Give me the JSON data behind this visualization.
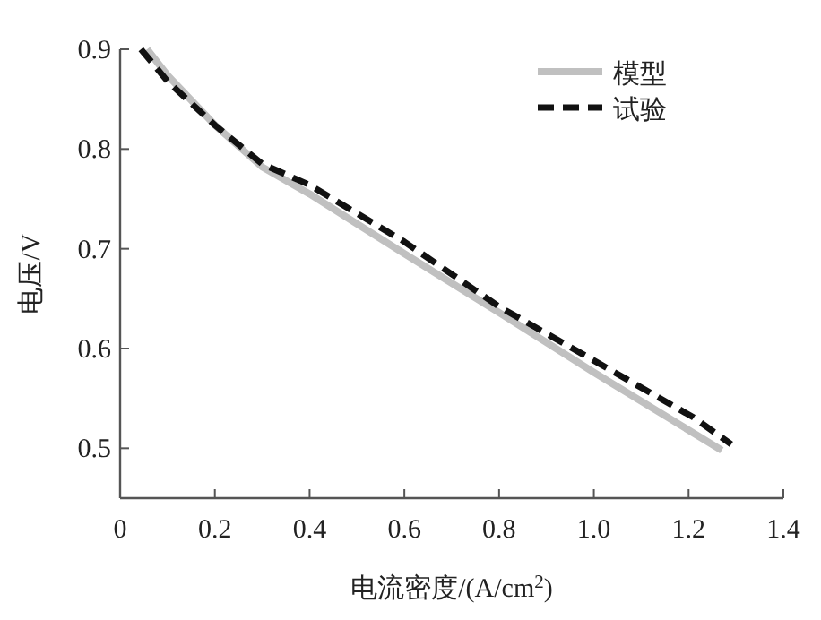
{
  "chart_data": {
    "type": "line",
    "xlabel": "电流密度/(A/cm$^{2}$)",
    "ylabel": "电压/V",
    "xlim": [
      0,
      1.4
    ],
    "ylim": [
      0.45,
      0.9
    ],
    "xticks": [
      0,
      0.2,
      0.4,
      0.6,
      0.8,
      {
        "value": 1.0,
        "label": "1.0"
      },
      1.2,
      1.4
    ],
    "yticks": [
      0.5,
      0.6,
      0.7,
      0.8,
      0.9
    ],
    "legend": "top right",
    "series": [
      {
        "name": "模型",
        "color": "#c0c0c0",
        "line_style": "solid",
        "x": [
          0.057,
          0.1,
          0.2,
          0.3,
          0.4,
          0.6,
          0.8,
          1.0,
          1.27
        ],
        "values": [
          0.9,
          0.874,
          0.824,
          0.782,
          0.755,
          0.695,
          0.636,
          0.576,
          0.498
        ]
      },
      {
        "name": "试验",
        "color": "#111111",
        "line_style": "dashed",
        "x": [
          0.044,
          0.1,
          0.2,
          0.3,
          0.4,
          0.6,
          0.8,
          1.0,
          1.21,
          1.29
        ],
        "values": [
          0.9,
          0.868,
          0.824,
          0.785,
          0.764,
          0.707,
          0.642,
          0.588,
          0.531,
          0.504
        ]
      }
    ]
  }
}
